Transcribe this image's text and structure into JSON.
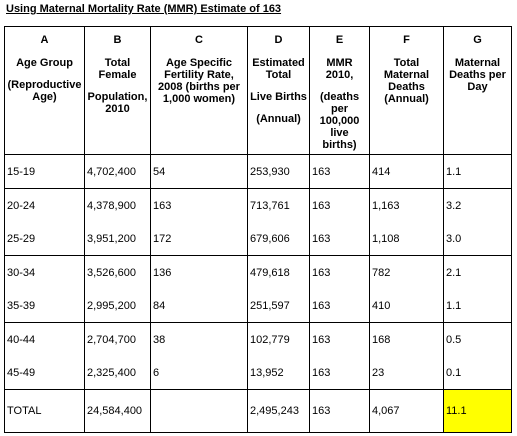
{
  "title": "Using Maternal Mortality Rate (MMR) Estimate of 163",
  "table": {
    "header": [
      {
        "letter": "A",
        "paragraphs": [
          "Age Group",
          "(Reproductive Age)"
        ]
      },
      {
        "letter": "B",
        "paragraphs": [
          "Total Female",
          "Population, 2010"
        ]
      },
      {
        "letter": "C",
        "paragraphs": [
          "Age Specific Fertility Rate, 2008 (births per 1,000 women)"
        ]
      },
      {
        "letter": "D",
        "paragraphs": [
          "Estimated Total",
          "Live Births",
          "(Annual)"
        ]
      },
      {
        "letter": "E",
        "paragraphs": [
          "MMR 2010,",
          "(deaths per 100,000 live births)"
        ]
      },
      {
        "letter": "F",
        "paragraphs": [
          "Total Maternal Deaths (Annual)"
        ]
      },
      {
        "letter": "G",
        "paragraphs": [
          "Maternal Deaths per Day"
        ]
      }
    ],
    "rows": [
      [
        "15-19",
        "4,702,400",
        "54",
        "253,930",
        "163",
        "414",
        "1.1"
      ],
      [
        "20-24",
        "4,378,900",
        "163",
        "713,761",
        "163",
        "1,163",
        "3.2"
      ],
      [
        "25-29",
        "3,951,200",
        "172",
        "679,606",
        "163",
        "1,108",
        "3.0"
      ],
      [
        "30-34",
        "3,526,600",
        "136",
        "479,618",
        "163",
        "782",
        "2.1"
      ],
      [
        "35-39",
        "2,995,200",
        "84",
        "251,597",
        "163",
        "410",
        "1.1"
      ],
      [
        "40-44",
        "2,704,700",
        "38",
        "102,779",
        "163",
        "168",
        "0.5"
      ],
      [
        "45-49",
        "2,325,400",
        "6",
        "13,952",
        "163",
        "23",
        "0.1"
      ],
      [
        "TOTAL",
        "24,584,400",
        null,
        "2,495,243",
        "163",
        "4,067",
        "11.1"
      ]
    ]
  }
}
